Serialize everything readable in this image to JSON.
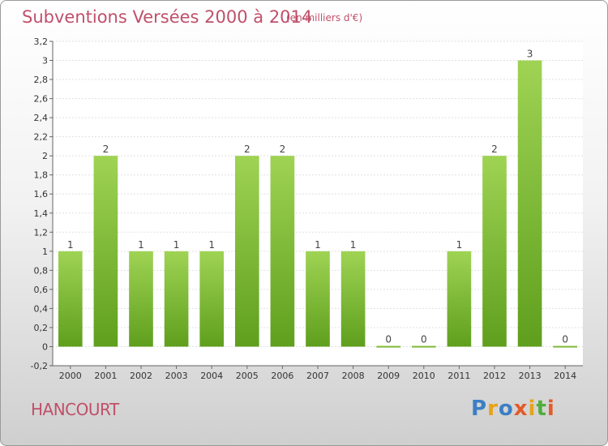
{
  "header": {
    "title": "Subventions Versées 2000 à 2014",
    "subtitle": "(en milliers d'€)"
  },
  "commune": "HANCOURT",
  "logo": {
    "text": "Proxiti",
    "colors": [
      "#3b7fc4",
      "#e8a317",
      "#e35b2a",
      "#4fae3a"
    ]
  },
  "chart_data": {
    "type": "bar",
    "title": "Subventions Versées 2000 à 2014",
    "subtitle": "(en milliers d'€)",
    "xlabel": "",
    "ylabel": "",
    "categories": [
      "2000",
      "2001",
      "2002",
      "2003",
      "2004",
      "2005",
      "2006",
      "2007",
      "2008",
      "2009",
      "2010",
      "2011",
      "2012",
      "2013",
      "2014"
    ],
    "values": [
      1,
      2,
      1,
      1,
      1,
      2,
      2,
      1,
      1,
      0,
      0,
      1,
      2,
      3,
      0
    ],
    "ylim": [
      -0.2,
      3.2
    ],
    "yticks": [
      "-0,2",
      "0",
      "0,2",
      "0,4",
      "0,6",
      "0,8",
      "1",
      "1,2",
      "1,4",
      "1,6",
      "1,8",
      "2",
      "2,2",
      "2,4",
      "2,6",
      "2,8",
      "3",
      "3,2"
    ],
    "ytick_values": [
      -0.2,
      0,
      0.2,
      0.4,
      0.6,
      0.8,
      1,
      1.2,
      1.4,
      1.6,
      1.8,
      2,
      2.2,
      2.4,
      2.6,
      2.8,
      3,
      3.2
    ],
    "grid": true,
    "bar_color": "#7fc23a",
    "bar_color_dark": "#5e9e1e"
  }
}
